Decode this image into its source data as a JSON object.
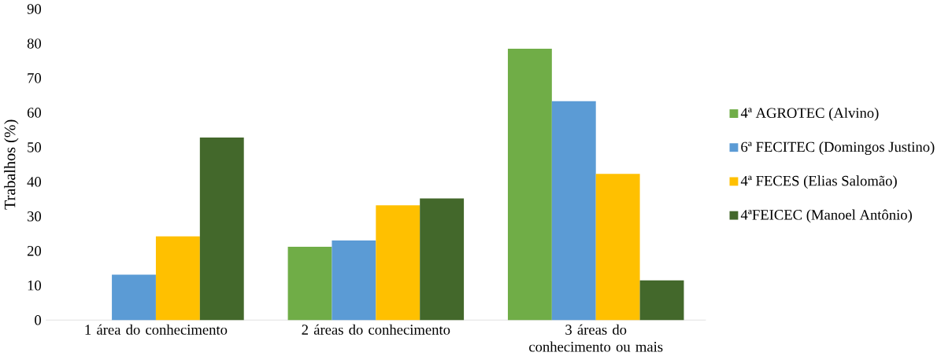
{
  "chart_data": {
    "type": "bar",
    "ylabel": "Trabalhos (%)",
    "categories": [
      "1 área do conhecimento",
      "2 áreas do conhecimento",
      "3 áreas do conhecimento ou mais"
    ],
    "series": [
      {
        "name": "4ª AGROTEC (Alvino)",
        "color": "#70ad47",
        "values": [
          null,
          21.2,
          78.5
        ]
      },
      {
        "name": "6ª FECITEC (Domingos Justino)",
        "color": "#5b9bd5",
        "values": [
          13.1,
          23.0,
          63.3
        ]
      },
      {
        "name": "4ª FECES (Elias Salomão)",
        "color": "#ffc000",
        "values": [
          24.2,
          33.2,
          42.3
        ]
      },
      {
        "name": "4ªFEICEC (Manoel Antônio)",
        "color": "#43682b",
        "values": [
          52.8,
          35.2,
          11.5
        ]
      }
    ],
    "ylim": [
      0,
      90
    ],
    "yticks": [
      0,
      10,
      20,
      30,
      40,
      50,
      60,
      70,
      80,
      90
    ],
    "grid": false,
    "legend": "right"
  }
}
